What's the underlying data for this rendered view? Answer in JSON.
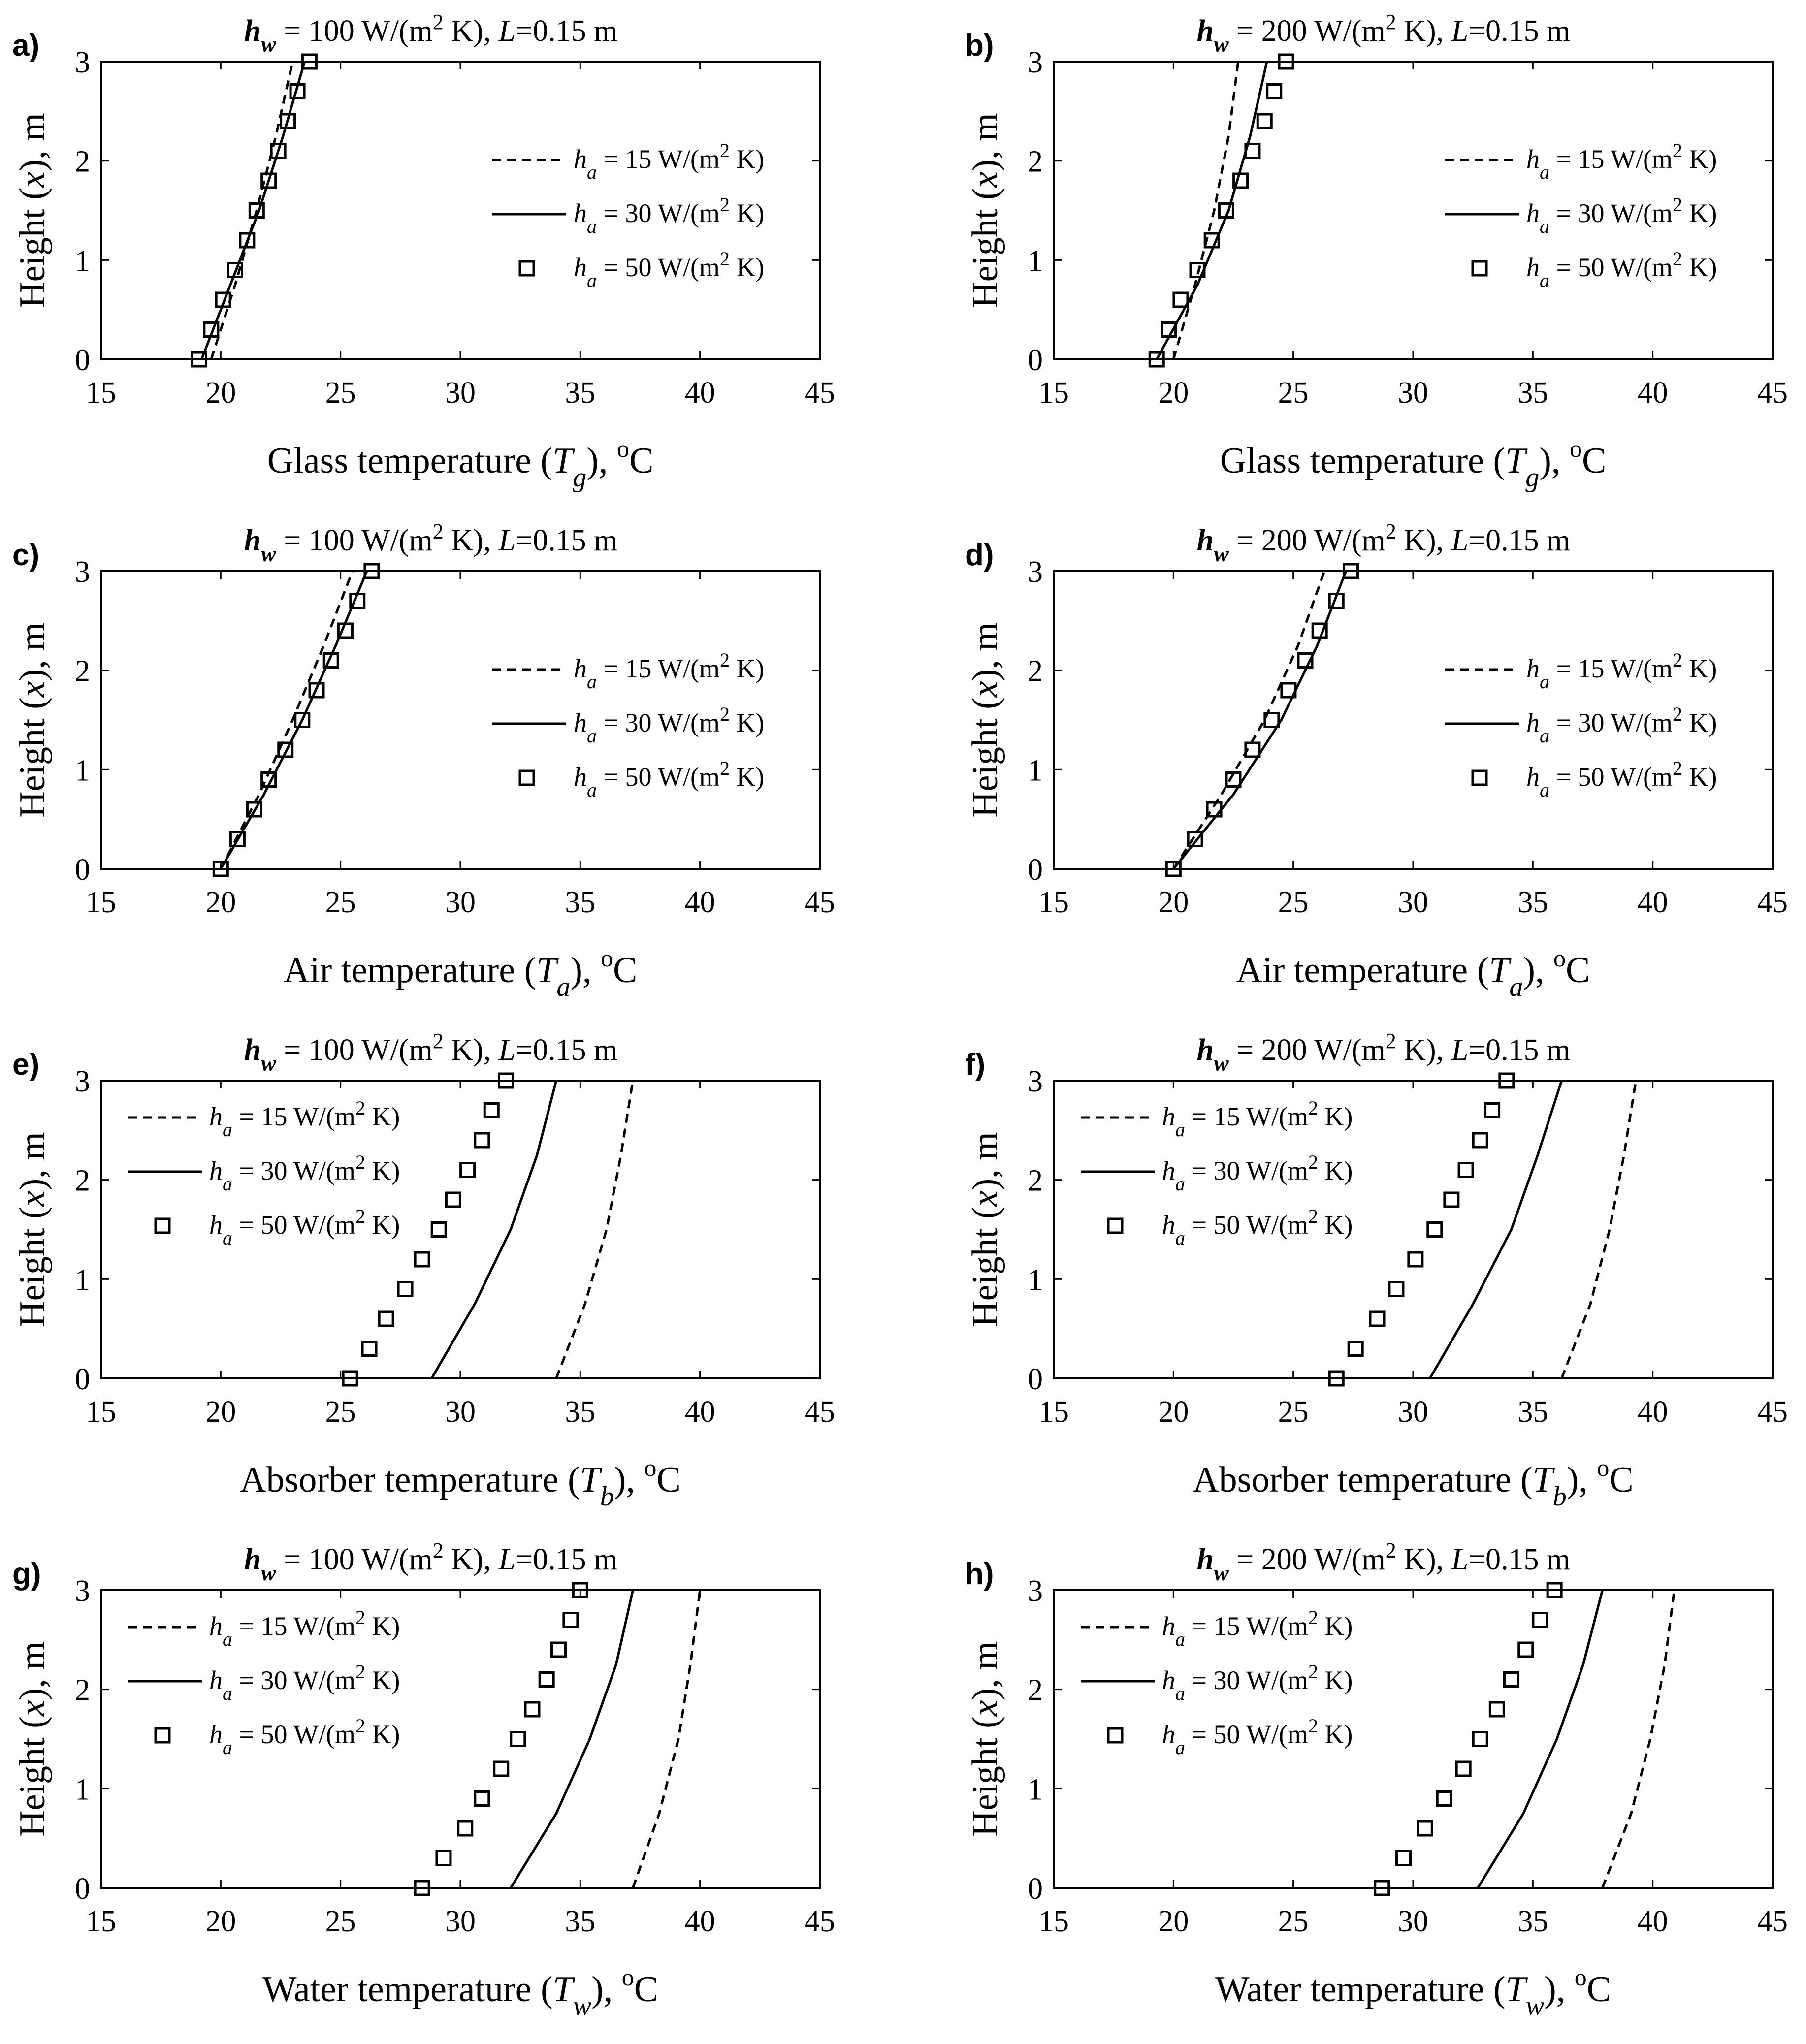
{
  "figure": {
    "font_note": "serif"
  },
  "common": {
    "ylabel_parts": [
      "Height (",
      "x",
      "), m"
    ],
    "xlim": [
      15,
      45
    ],
    "ylim": [
      0,
      3
    ],
    "xticks": [
      15,
      20,
      25,
      30,
      35,
      40,
      45
    ],
    "yticks": [
      0,
      1,
      2,
      3
    ],
    "legend_entries": [
      {
        "h": "h",
        "sub": "a",
        "text": " = 15 W/(m",
        "sup": "2",
        "tail": " K)",
        "style": "dashed"
      },
      {
        "h": "h",
        "sub": "a",
        "text": " = 30 W/(m",
        "sup": "2",
        "tail": " K)",
        "style": "solid"
      },
      {
        "h": "h",
        "sub": "a",
        "text": " = 50 W/(m",
        "sup": "2",
        "tail": " K)",
        "style": "square"
      }
    ]
  },
  "chart_data": [
    {
      "panel": "a)",
      "type": "line",
      "title": {
        "h": "h",
        "sub": "w",
        "rest1": " = 100 W/(m",
        "sup": "2",
        "rest2": " K), ",
        "L": "L",
        "rest3": "=0.15 m"
      },
      "xlabel": {
        "pre": "Glass temperature (",
        "var": "T",
        "sub": "g",
        "post": "), ",
        "deg": "o",
        "unit": "C"
      },
      "legend_pos": "right",
      "series": [
        {
          "name": "h_a = 15 W/(m2 K)",
          "style": "dashed",
          "x": [
            19.6,
            20.6,
            21.5,
            22.3,
            23.0
          ],
          "y": [
            0,
            0.75,
            1.5,
            2.25,
            3
          ]
        },
        {
          "name": "h_a = 30 W/(m2 K)",
          "style": "solid",
          "x": [
            19.2,
            20.4,
            21.6,
            22.6,
            23.5
          ],
          "y": [
            0,
            0.75,
            1.5,
            2.25,
            3
          ]
        },
        {
          "name": "h_a = 50 W/(m2 K)",
          "style": "square",
          "x": [
            19.1,
            19.6,
            20.1,
            20.6,
            21.1,
            21.5,
            22.0,
            22.4,
            22.8,
            23.2,
            23.7
          ],
          "y": [
            0,
            0.3,
            0.6,
            0.9,
            1.2,
            1.5,
            1.8,
            2.1,
            2.4,
            2.7,
            3.0
          ]
        }
      ]
    },
    {
      "panel": "b)",
      "type": "line",
      "title": {
        "h": "h",
        "sub": "w",
        "rest1": " = 200 W/(m",
        "sup": "2",
        "rest2": " K), ",
        "L": "L",
        "rest3": "=0.15 m"
      },
      "xlabel": {
        "pre": "Glass temperature (",
        "var": "T",
        "sub": "g",
        "post": "), ",
        "deg": "o",
        "unit": "C"
      },
      "legend_pos": "right",
      "series": [
        {
          "name": "h_a = 15 W/(m2 K)",
          "style": "dashed",
          "x": [
            20.0,
            20.9,
            21.7,
            22.3,
            22.7
          ],
          "y": [
            0,
            0.75,
            1.5,
            2.25,
            3
          ]
        },
        {
          "name": "h_a = 30 W/(m2 K)",
          "style": "solid",
          "x": [
            19.3,
            21.0,
            22.3,
            23.2,
            23.9
          ],
          "y": [
            0,
            0.75,
            1.5,
            2.25,
            3
          ]
        },
        {
          "name": "h_a = 50 W/(m2 K)",
          "style": "square",
          "x": [
            19.3,
            19.8,
            20.3,
            21.0,
            21.6,
            22.2,
            22.8,
            23.3,
            23.8,
            24.2,
            24.7
          ],
          "y": [
            0,
            0.3,
            0.6,
            0.9,
            1.2,
            1.5,
            1.8,
            2.1,
            2.4,
            2.7,
            3.0
          ]
        }
      ]
    },
    {
      "panel": "c)",
      "type": "line",
      "title": {
        "h": "h",
        "sub": "w",
        "rest1": " = 100 W/(m",
        "sup": "2",
        "rest2": " K), ",
        "L": "L",
        "rest3": "=0.15 m"
      },
      "xlabel": {
        "pre": "Air temperature (",
        "var": "T",
        "sub": "a",
        "post": "), ",
        "deg": "o",
        "unit": "C"
      },
      "legend_pos": "right",
      "series": [
        {
          "name": "h_a = 15 W/(m2 K)",
          "style": "dashed",
          "x": [
            20.0,
            21.6,
            23.0,
            24.3,
            25.5
          ],
          "y": [
            0,
            0.75,
            1.5,
            2.25,
            3
          ]
        },
        {
          "name": "h_a = 30 W/(m2 K)",
          "style": "solid",
          "x": [
            20.0,
            21.8,
            23.4,
            24.8,
            26.1
          ],
          "y": [
            0,
            0.75,
            1.5,
            2.25,
            3
          ]
        },
        {
          "name": "h_a = 50 W/(m2 K)",
          "style": "square",
          "x": [
            20.0,
            20.7,
            21.4,
            22.0,
            22.7,
            23.4,
            24.0,
            24.6,
            25.2,
            25.7,
            26.3
          ],
          "y": [
            0,
            0.3,
            0.6,
            0.9,
            1.2,
            1.5,
            1.8,
            2.1,
            2.4,
            2.7,
            3.0
          ]
        }
      ]
    },
    {
      "panel": "d)",
      "type": "line",
      "title": {
        "h": "h",
        "sub": "w",
        "rest1": " = 200 W/(m",
        "sup": "2",
        "rest2": " K), ",
        "L": "L",
        "rest3": "=0.15 m"
      },
      "xlabel": {
        "pre": "Air temperature (",
        "var": "T",
        "sub": "a",
        "post": "), ",
        "deg": "o",
        "unit": "C"
      },
      "legend_pos": "right",
      "series": [
        {
          "name": "h_a = 15 W/(m2 K)",
          "style": "dashed",
          "x": [
            20.0,
            22.0,
            23.8,
            25.2,
            26.3
          ],
          "y": [
            0,
            0.75,
            1.5,
            2.25,
            3
          ]
        },
        {
          "name": "h_a = 30 W/(m2 K)",
          "style": "solid",
          "x": [
            20.0,
            22.5,
            24.5,
            26.0,
            27.2
          ],
          "y": [
            0,
            0.75,
            1.5,
            2.25,
            3
          ]
        },
        {
          "name": "h_a = 50 W/(m2 K)",
          "style": "square",
          "x": [
            20.0,
            20.9,
            21.7,
            22.5,
            23.3,
            24.1,
            24.8,
            25.5,
            26.1,
            26.8,
            27.4
          ],
          "y": [
            0,
            0.3,
            0.6,
            0.9,
            1.2,
            1.5,
            1.8,
            2.1,
            2.4,
            2.7,
            3.0
          ]
        }
      ]
    },
    {
      "panel": "e)",
      "type": "line",
      "title": {
        "h": "h",
        "sub": "w",
        "rest1": " = 100 W/(m",
        "sup": "2",
        "rest2": " K), ",
        "L": "L",
        "rest3": "=0.15 m"
      },
      "xlabel": {
        "pre": "Absorber temperature (",
        "var": "T",
        "sub": "b",
        "post": "), ",
        "deg": "o",
        "unit": "C"
      },
      "legend_pos": "left",
      "series": [
        {
          "name": "h_a = 15 W/(m2 K)",
          "style": "dashed",
          "x": [
            34.0,
            35.2,
            36.1,
            36.7,
            37.2
          ],
          "y": [
            0,
            0.75,
            1.5,
            2.25,
            3
          ]
        },
        {
          "name": "h_a = 30 W/(m2 K)",
          "style": "solid",
          "x": [
            28.8,
            30.6,
            32.1,
            33.2,
            34.0
          ],
          "y": [
            0,
            0.75,
            1.5,
            2.25,
            3
          ]
        },
        {
          "name": "h_a = 50 W/(m2 K)",
          "style": "square",
          "x": [
            25.4,
            26.2,
            26.9,
            27.7,
            28.4,
            29.1,
            29.7,
            30.3,
            30.9,
            31.3,
            31.9
          ],
          "y": [
            0,
            0.3,
            0.6,
            0.9,
            1.2,
            1.5,
            1.8,
            2.1,
            2.4,
            2.7,
            3.0
          ]
        }
      ]
    },
    {
      "panel": "f)",
      "type": "line",
      "title": {
        "h": "h",
        "sub": "w",
        "rest1": " = 200 W/(m",
        "sup": "2",
        "rest2": " K), ",
        "L": "L",
        "rest3": "=0.15 m"
      },
      "xlabel": {
        "pre": "Absorber temperature (",
        "var": "T",
        "sub": "b",
        "post": "), ",
        "deg": "o",
        "unit": "C"
      },
      "legend_pos": "left",
      "series": [
        {
          "name": "h_a = 15 W/(m2 K)",
          "style": "dashed",
          "x": [
            36.2,
            37.4,
            38.2,
            38.8,
            39.3
          ],
          "y": [
            0,
            0.75,
            1.5,
            2.25,
            3
          ]
        },
        {
          "name": "h_a = 30 W/(m2 K)",
          "style": "solid",
          "x": [
            30.7,
            32.5,
            34.1,
            35.2,
            36.2
          ],
          "y": [
            0,
            0.75,
            1.5,
            2.25,
            3
          ]
        },
        {
          "name": "h_a = 50 W/(m2 K)",
          "style": "square",
          "x": [
            26.8,
            27.6,
            28.5,
            29.3,
            30.1,
            30.9,
            31.6,
            32.2,
            32.8,
            33.3,
            33.9
          ],
          "y": [
            0,
            0.3,
            0.6,
            0.9,
            1.2,
            1.5,
            1.8,
            2.1,
            2.4,
            2.7,
            3.0
          ]
        }
      ]
    },
    {
      "panel": "g)",
      "type": "line",
      "title": {
        "h": "h",
        "sub": "w",
        "rest1": " = 100 W/(m",
        "sup": "2",
        "rest2": " K), ",
        "L": "L",
        "rest3": "=0.15 m"
      },
      "xlabel": {
        "pre": "Water temperature (",
        "var": "T",
        "sub": "w",
        "post": "), ",
        "deg": "o",
        "unit": "C"
      },
      "legend_pos": "left",
      "series": [
        {
          "name": "h_a = 15 W/(m2 K)",
          "style": "dashed",
          "x": [
            37.2,
            38.3,
            39.1,
            39.6,
            40.0
          ],
          "y": [
            0,
            0.75,
            1.5,
            2.25,
            3
          ]
        },
        {
          "name": "h_a = 30 W/(m2 K)",
          "style": "solid",
          "x": [
            32.1,
            34.0,
            35.4,
            36.5,
            37.2
          ],
          "y": [
            0,
            0.75,
            1.5,
            2.25,
            3
          ]
        },
        {
          "name": "h_a = 50 W/(m2 K)",
          "style": "square",
          "x": [
            28.4,
            29.3,
            30.2,
            30.9,
            31.7,
            32.4,
            33.0,
            33.6,
            34.1,
            34.6,
            35.0
          ],
          "y": [
            0,
            0.3,
            0.6,
            0.9,
            1.2,
            1.5,
            1.8,
            2.1,
            2.4,
            2.7,
            3.0
          ]
        }
      ]
    },
    {
      "panel": "h)",
      "type": "line",
      "title": {
        "h": "h",
        "sub": "w",
        "rest1": " = 200 W/(m",
        "sup": "2",
        "rest2": " K), ",
        "L": "L",
        "rest3": "=0.15 m"
      },
      "xlabel": {
        "pre": "Water temperature (",
        "var": "T",
        "sub": "w",
        "post": "), ",
        "deg": "o",
        "unit": "C"
      },
      "legend_pos": "left",
      "series": [
        {
          "name": "h_a = 15 W/(m2 K)",
          "style": "dashed",
          "x": [
            37.9,
            39.1,
            39.9,
            40.5,
            40.9
          ],
          "y": [
            0,
            0.75,
            1.5,
            2.25,
            3
          ]
        },
        {
          "name": "h_a = 30 W/(m2 K)",
          "style": "solid",
          "x": [
            32.7,
            34.6,
            36.0,
            37.1,
            37.9
          ],
          "y": [
            0,
            0.75,
            1.5,
            2.25,
            3
          ]
        },
        {
          "name": "h_a = 50 W/(m2 K)",
          "style": "square",
          "x": [
            28.7,
            29.6,
            30.5,
            31.3,
            32.1,
            32.8,
            33.5,
            34.1,
            34.7,
            35.3,
            35.9
          ],
          "y": [
            0,
            0.3,
            0.6,
            0.9,
            1.2,
            1.5,
            1.8,
            2.1,
            2.4,
            2.7,
            3.0
          ]
        }
      ]
    }
  ]
}
